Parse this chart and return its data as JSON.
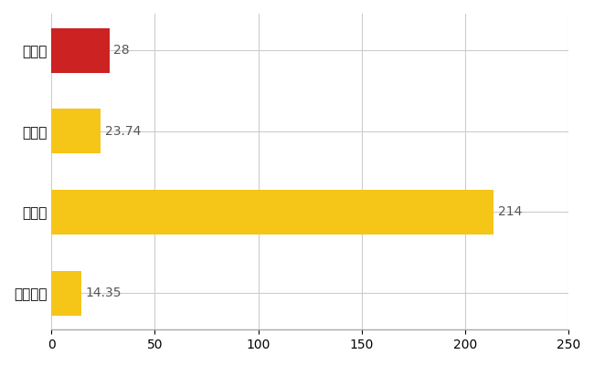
{
  "categories": [
    "佐渡市",
    "県平均",
    "県最大",
    "全国平均"
  ],
  "values": [
    28,
    23.74,
    214,
    14.35
  ],
  "bar_colors": [
    "#cc2222",
    "#f5c518",
    "#f5c518",
    "#f5c518"
  ],
  "value_labels": [
    "28",
    "23.74",
    "214",
    "14.35"
  ],
  "xlim": [
    0,
    250
  ],
  "xticks": [
    0,
    50,
    100,
    150,
    200,
    250
  ],
  "background_color": "#ffffff",
  "grid_color": "#cccccc",
  "label_fontsize": 11,
  "tick_fontsize": 10,
  "value_label_fontsize": 10,
  "value_label_color": "#555555",
  "bar_height": 0.55
}
